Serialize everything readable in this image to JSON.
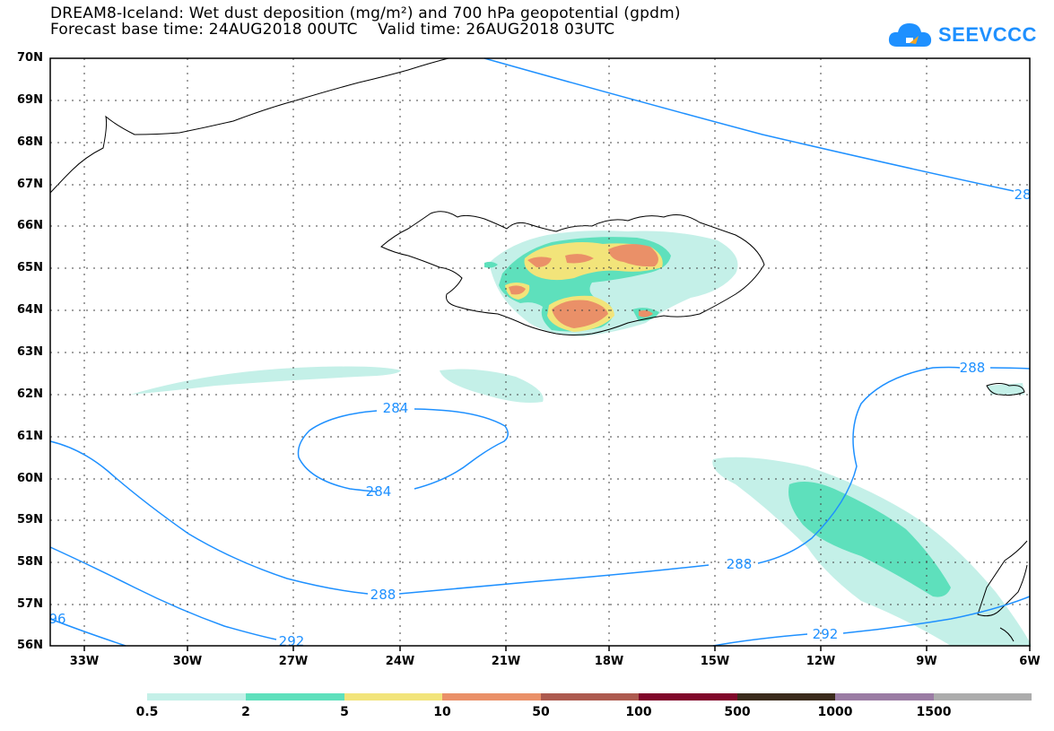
{
  "title_line1": "DREAM8-Iceland: Wet dust deposition (mg/m²) and 700 hPa geopotential (gpdm)",
  "title_line2": "Forecast base time: 24AUG2018 00UTC    Valid time: 26AUG2018 03UTC",
  "logo_text": "SEEVCCC",
  "lat_labels": [
    "70N",
    "69N",
    "68N",
    "67N",
    "66N",
    "65N",
    "64N",
    "63N",
    "62N",
    "61N",
    "60N",
    "59N",
    "58N",
    "57N",
    "56N"
  ],
  "lon_labels": [
    "33W",
    "30W",
    "27W",
    "24W",
    "21W",
    "18W",
    "15W",
    "12W",
    "9W",
    "6W"
  ],
  "contour_labels": [
    "284",
    "284",
    "288",
    "288",
    "288",
    "292",
    "292",
    "96",
    "28"
  ],
  "legend": {
    "colors": [
      "#c4f0e8",
      "#5ee0bc",
      "#f2e47a",
      "#ea9068",
      "#ad5a4f",
      "#80062a",
      "#3b2b1c",
      "#9b7ca4",
      "#acacac"
    ],
    "labels": [
      "0.5",
      "2",
      "5",
      "10",
      "50",
      "100",
      "500",
      "1000",
      "1500"
    ]
  }
}
